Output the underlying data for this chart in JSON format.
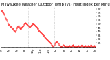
{
  "title": "Milwaukee Weather Outdoor Temp (vs) Heat Index per Minute (Last 24 Hours)",
  "title_fontsize": 3.8,
  "line_color": "#ff0000",
  "background_color": "#ffffff",
  "ylim": [
    20,
    72
  ],
  "yticks": [
    25,
    30,
    35,
    40,
    45,
    50,
    55,
    60,
    65,
    70
  ],
  "ytick_fontsize": 3.2,
  "xtick_fontsize": 2.8,
  "vline_positions": [
    0.285,
    0.565
  ],
  "vline_color": "#bbbbbb",
  "markersize": 0.8,
  "linewidth": 0.3,
  "temp_data": [
    68,
    67,
    66,
    65,
    64,
    62,
    60,
    58,
    56,
    54,
    52,
    50,
    49,
    48,
    47,
    46,
    45,
    44,
    43,
    42,
    41,
    40,
    42,
    44,
    46,
    47,
    48,
    46,
    44,
    43,
    44,
    45,
    46,
    47,
    48,
    50,
    51,
    52,
    51,
    50,
    49,
    48,
    47,
    46,
    47,
    48,
    49,
    50,
    51,
    50,
    49,
    48,
    47,
    46,
    45,
    44,
    43,
    42,
    41,
    40,
    39,
    38,
    37,
    36,
    35,
    34,
    33,
    32,
    31,
    30,
    29,
    28,
    27,
    26,
    25,
    24,
    23,
    22,
    21,
    22,
    23,
    24,
    25,
    26,
    27,
    26,
    25,
    24,
    23,
    22,
    21,
    20,
    21,
    22,
    23,
    22,
    21,
    20,
    21,
    22,
    21,
    20,
    21,
    22,
    21,
    20,
    21,
    22,
    23,
    22,
    21,
    20,
    21,
    22,
    21,
    20,
    21,
    22,
    21,
    20,
    21,
    22,
    23,
    22,
    21,
    20,
    21,
    22,
    21,
    20,
    21,
    22,
    21,
    20,
    21,
    22,
    23,
    22,
    21,
    20,
    21,
    22,
    21,
    20
  ],
  "num_xticks": 25,
  "xtick_labels": [
    "6p",
    "",
    "7p",
    "",
    "8p",
    "",
    "9p",
    "",
    "10p",
    "",
    "11p",
    "",
    "12a",
    "",
    "1a",
    "",
    "2a",
    "",
    "3a",
    "",
    "4a",
    "",
    "5a",
    "",
    "6a"
  ]
}
